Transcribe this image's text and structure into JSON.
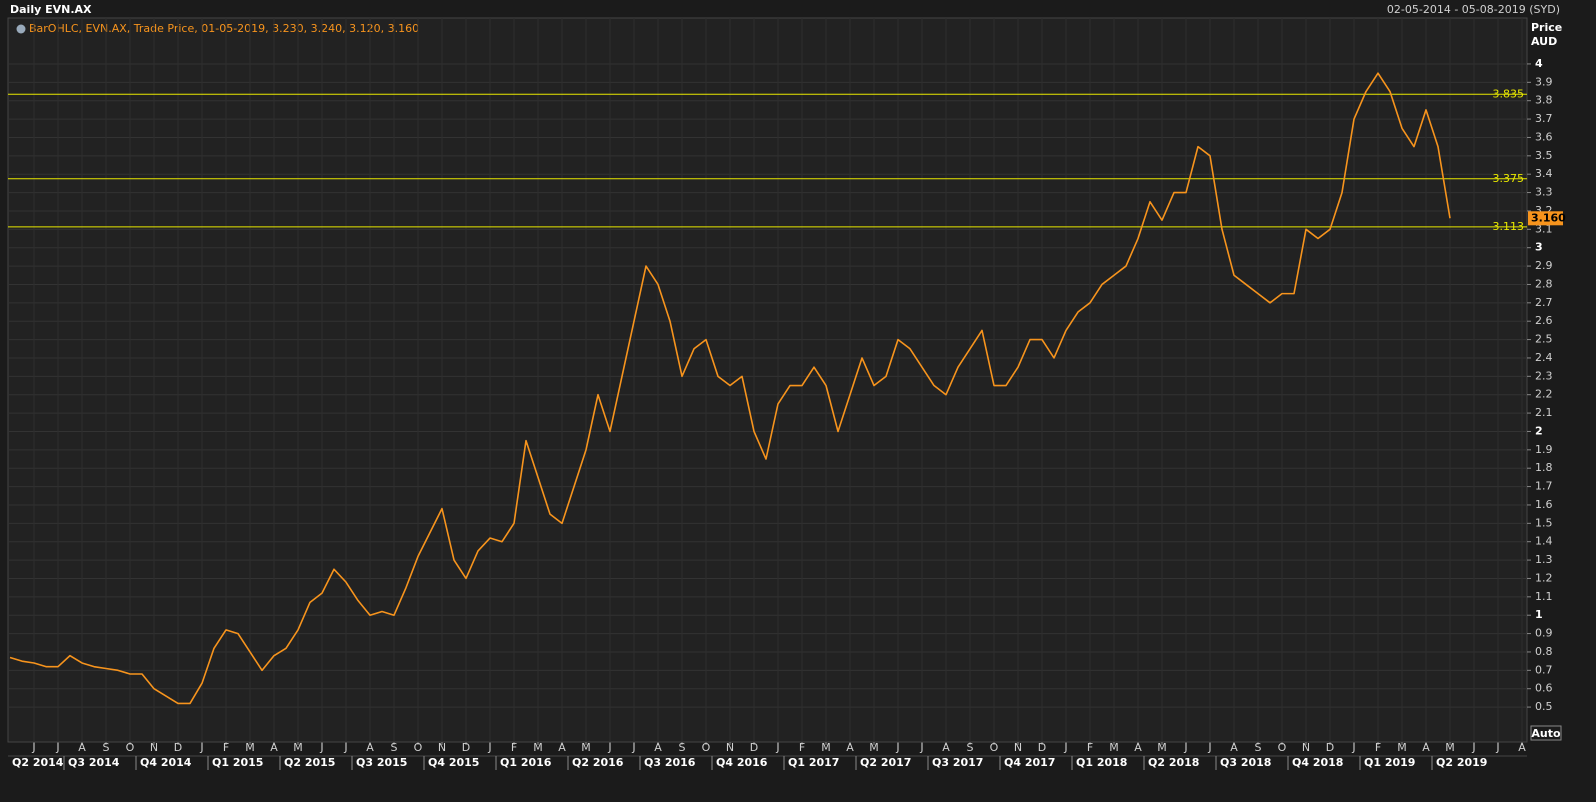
{
  "chart_data": {
    "type": "line",
    "title": "Daily EVN.AX",
    "date_range": "02-05-2014 - 05-08-2019 (SYD)",
    "legend_text": "BarOHLC, EVN.AX, Trade Price, 01-05-2019, 3.230, 3.240, 3.120, 3.160",
    "y_axis_label": "Price",
    "y_axis_unit": "AUD",
    "auto_button": "Auto",
    "categories": [
      null,
      null,
      "J",
      null,
      "J",
      null,
      "A",
      null,
      "S",
      null,
      "O",
      null,
      "N",
      null,
      "D",
      null,
      "J",
      null,
      "F",
      null,
      "M",
      null,
      "A",
      null,
      "M",
      null,
      "J",
      null,
      "J",
      null,
      "A",
      null,
      "S",
      null,
      "O",
      null,
      "N",
      null,
      "D",
      null,
      "J",
      null,
      "F",
      null,
      "M",
      null,
      "A",
      null,
      "M",
      null,
      "J",
      null,
      "J",
      null,
      "A",
      null,
      "S",
      null,
      "O",
      null,
      "N",
      null,
      "D",
      null,
      "J",
      null,
      "F",
      null,
      "M",
      null,
      "A",
      null,
      "M",
      null,
      "J",
      null,
      "J",
      null,
      "A",
      null,
      "S",
      null,
      "O",
      null,
      "N",
      null,
      "D",
      null,
      "J",
      null,
      "F",
      null,
      "M",
      null,
      "A",
      null,
      "M",
      null,
      "J",
      null,
      "J",
      null,
      "A",
      null,
      "S",
      null,
      "O",
      null,
      "N",
      null,
      "D",
      null,
      "J",
      null,
      "F",
      null,
      "M",
      null,
      "A",
      null,
      "M",
      null,
      "J",
      null,
      "J",
      null,
      "A"
    ],
    "series": [
      {
        "name": "EVN.AX",
        "color": "#f7941d",
        "values": [
          0.77,
          0.75,
          0.74,
          0.72,
          0.72,
          0.78,
          0.74,
          0.72,
          0.71,
          0.7,
          0.68,
          0.68,
          0.6,
          0.56,
          0.52,
          0.52,
          0.63,
          0.82,
          0.92,
          0.9,
          0.8,
          0.7,
          0.78,
          0.82,
          0.92,
          1.07,
          1.12,
          1.25,
          1.18,
          1.08,
          1.0,
          1.02,
          1.0,
          1.15,
          1.32,
          1.45,
          1.58,
          1.3,
          1.2,
          1.35,
          1.42,
          1.4,
          1.5,
          1.95,
          1.75,
          1.55,
          1.5,
          1.7,
          1.9,
          2.2,
          2.0,
          2.3,
          2.6,
          2.9,
          2.8,
          2.6,
          2.3,
          2.45,
          2.5,
          2.3,
          2.25,
          2.3,
          2.0,
          1.85,
          2.15,
          2.25,
          2.25,
          2.35,
          2.25,
          2.0,
          2.2,
          2.4,
          2.25,
          2.3,
          2.5,
          2.45,
          2.35,
          2.25,
          2.2,
          2.35,
          2.45,
          2.55,
          2.25,
          2.25,
          2.35,
          2.5,
          2.5,
          2.4,
          2.55,
          2.65,
          2.7,
          2.8,
          2.85,
          2.9,
          3.05,
          3.25,
          3.15,
          3.3,
          3.3,
          3.55,
          3.5,
          3.1,
          2.85,
          2.8,
          2.75,
          2.7,
          2.75,
          2.75,
          3.1,
          3.05,
          3.1,
          3.3,
          3.7,
          3.85,
          3.95,
          3.85,
          3.65,
          3.55,
          3.75,
          3.55,
          3.16,
          null,
          null,
          null,
          null,
          null,
          null
        ]
      }
    ],
    "quarters": [
      "Q2 2014",
      "Q3 2014",
      "Q4 2014",
      "Q1 2015",
      "Q2 2015",
      "Q3 2015",
      "Q4 2015",
      "Q1 2016",
      "Q2 2016",
      "Q3 2016",
      "Q4 2016",
      "Q1 2017",
      "Q2 2017",
      "Q3 2017",
      "Q4 2017",
      "Q1 2018",
      "Q2 2018",
      "Q3 2018",
      "Q4 2018",
      "Q1 2019",
      "Q2 2019"
    ],
    "hlines": [
      3.835,
      3.375,
      3.113
    ],
    "hline_color": "#e8e800",
    "last_price": {
      "value": 3.16,
      "label": "3.160"
    },
    "ylim": [
      0.31,
      4.25
    ],
    "yticks": [
      0.5,
      0.6,
      0.7,
      0.8,
      0.9,
      1,
      1.1,
      1.2,
      1.3,
      1.4,
      1.5,
      1.6,
      1.7,
      1.8,
      1.9,
      2,
      2.1,
      2.2,
      2.3,
      2.4,
      2.5,
      2.6,
      2.7,
      2.8,
      2.9,
      3,
      3.1,
      3.2,
      3.3,
      3.4,
      3.5,
      3.6,
      3.7,
      3.8,
      3.9,
      4
    ],
    "grid": true
  }
}
